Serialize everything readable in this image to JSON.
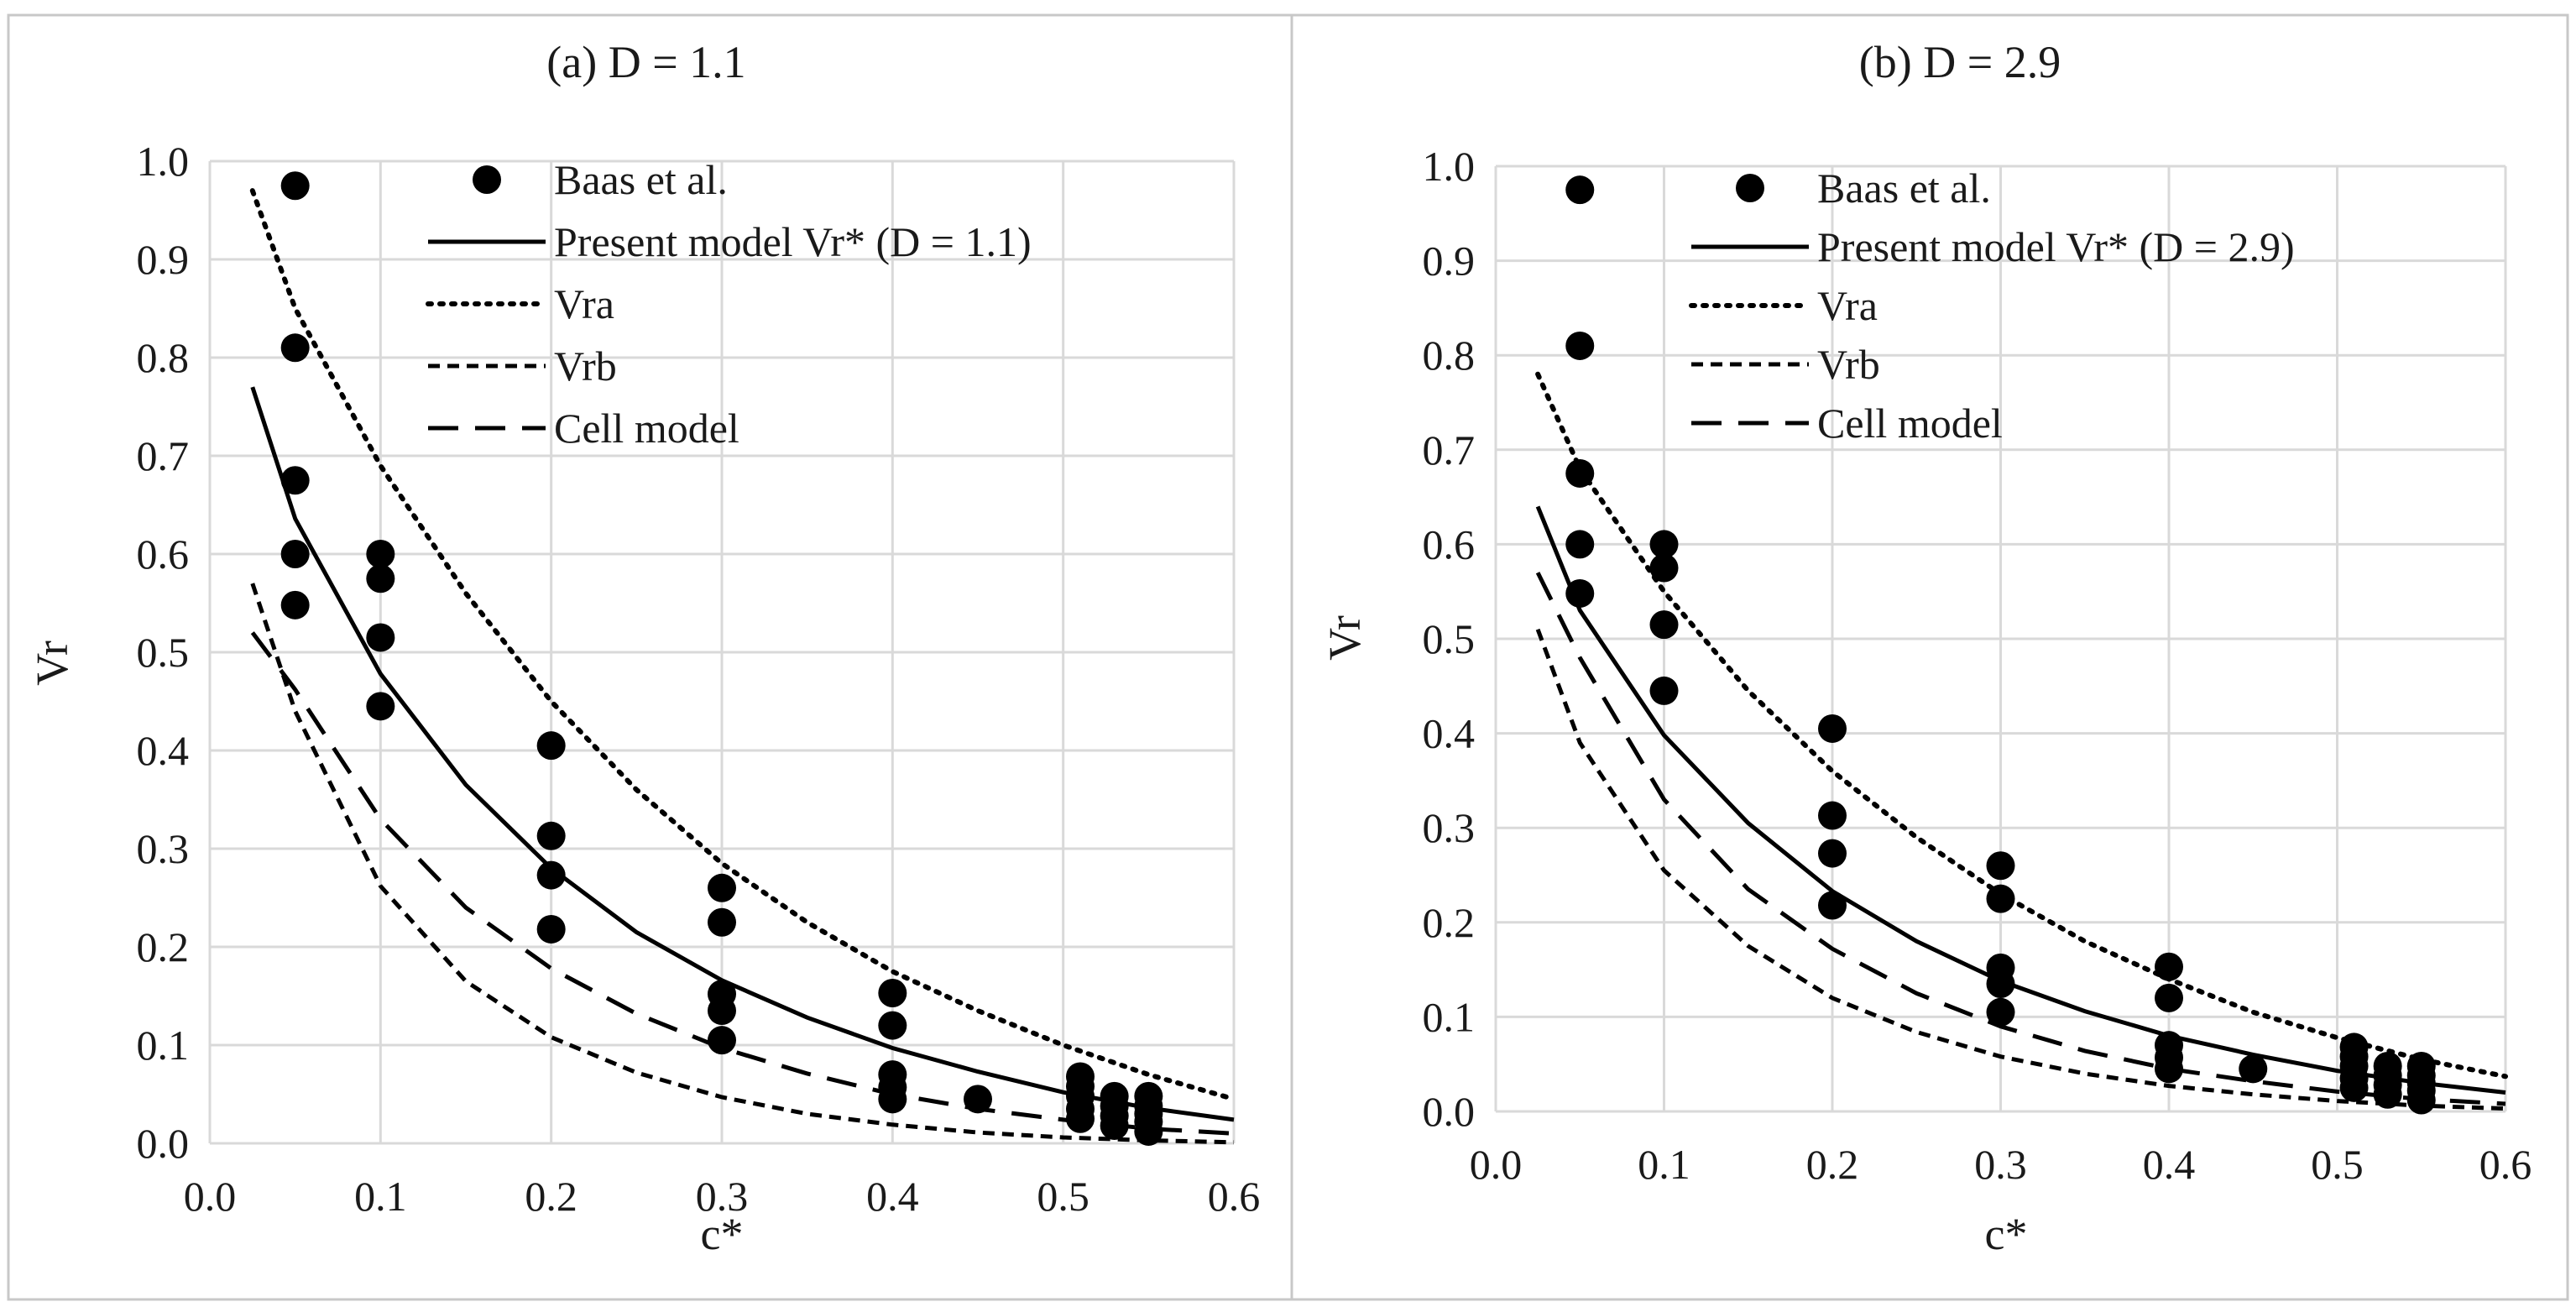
{
  "chart_data": [
    {
      "type": "scatter",
      "title": "(a) D = 1.1",
      "xlabel": "c*",
      "ylabel": "Vr",
      "xlim": [
        0.0,
        0.6
      ],
      "ylim": [
        0.0,
        1.0
      ],
      "xticks": [
        "0.0",
        "0.1",
        "0.2",
        "0.3",
        "0.4",
        "0.5",
        "0.6"
      ],
      "yticks": [
        "0.0",
        "0.1",
        "0.2",
        "0.3",
        "0.4",
        "0.5",
        "0.6",
        "0.7",
        "0.8",
        "0.9",
        "1.0"
      ],
      "grid": true,
      "legend_position": "top-right",
      "legend": [
        "Baas et al.",
        "Present model Vr* (D = 1.1)",
        "Vra",
        "Vrb",
        "Cell model"
      ],
      "series": [
        {
          "name": "Baas et al.",
          "kind": "points",
          "x": [
            0.05,
            0.05,
            0.05,
            0.05,
            0.05,
            0.1,
            0.1,
            0.1,
            0.1,
            0.2,
            0.2,
            0.2,
            0.2,
            0.3,
            0.3,
            0.3,
            0.3,
            0.3,
            0.4,
            0.4,
            0.4,
            0.4,
            0.4,
            0.45,
            0.51,
            0.51,
            0.51,
            0.51,
            0.51,
            0.53,
            0.53,
            0.53,
            0.53,
            0.55,
            0.55,
            0.55,
            0.55,
            0.55
          ],
          "y": [
            0.975,
            0.81,
            0.675,
            0.6,
            0.548,
            0.6,
            0.575,
            0.515,
            0.445,
            0.405,
            0.313,
            0.273,
            0.218,
            0.26,
            0.225,
            0.152,
            0.135,
            0.105,
            0.153,
            0.12,
            0.07,
            0.057,
            0.045,
            0.045,
            0.068,
            0.058,
            0.048,
            0.035,
            0.025,
            0.048,
            0.038,
            0.028,
            0.018,
            0.048,
            0.038,
            0.03,
            0.022,
            0.012
          ]
        },
        {
          "name": "Present model Vr* (D = 1.1)",
          "kind": "line",
          "style": "solid",
          "x": [
            0.025,
            0.05,
            0.1,
            0.15,
            0.2,
            0.25,
            0.3,
            0.35,
            0.4,
            0.45,
            0.5,
            0.55,
            0.6
          ],
          "y": [
            0.77,
            0.636,
            0.478,
            0.365,
            0.28,
            0.215,
            0.166,
            0.128,
            0.097,
            0.073,
            0.052,
            0.036,
            0.024
          ]
        },
        {
          "name": "Vra",
          "kind": "line",
          "style": "dotted",
          "x": [
            0.025,
            0.05,
            0.1,
            0.15,
            0.2,
            0.25,
            0.3,
            0.35,
            0.4,
            0.45,
            0.5,
            0.55,
            0.6
          ],
          "y": [
            0.97,
            0.85,
            0.69,
            0.56,
            0.45,
            0.36,
            0.285,
            0.225,
            0.175,
            0.135,
            0.1,
            0.07,
            0.045
          ]
        },
        {
          "name": "Vrb",
          "kind": "line",
          "style": "short-dash",
          "x": [
            0.025,
            0.05,
            0.1,
            0.15,
            0.2,
            0.25,
            0.3,
            0.35,
            0.4,
            0.45,
            0.5,
            0.55,
            0.6
          ],
          "y": [
            0.57,
            0.44,
            0.262,
            0.165,
            0.108,
            0.072,
            0.047,
            0.03,
            0.019,
            0.011,
            0.006,
            0.003,
            0.001
          ]
        },
        {
          "name": "Cell model",
          "kind": "line",
          "style": "long-dash",
          "x": [
            0.025,
            0.05,
            0.1,
            0.15,
            0.2,
            0.25,
            0.3,
            0.35,
            0.4,
            0.45,
            0.5,
            0.55,
            0.6
          ],
          "y": [
            0.52,
            0.462,
            0.33,
            0.24,
            0.178,
            0.132,
            0.097,
            0.071,
            0.05,
            0.035,
            0.024,
            0.015,
            0.01
          ]
        }
      ]
    },
    {
      "type": "scatter",
      "title": "(b) D = 2.9",
      "xlabel": "c*",
      "ylabel": "Vr",
      "xlim": [
        0.0,
        0.6
      ],
      "ylim": [
        0.0,
        1.0
      ],
      "xticks": [
        "0.0",
        "0.1",
        "0.2",
        "0.3",
        "0.4",
        "0.5",
        "0.6"
      ],
      "yticks": [
        "0.0",
        "0.1",
        "0.2",
        "0.3",
        "0.4",
        "0.5",
        "0.6",
        "0.7",
        "0.8",
        "0.9",
        "1.0"
      ],
      "grid": true,
      "legend_position": "top-right",
      "legend": [
        "Baas et al.",
        "Present model Vr* (D = 2.9)",
        "Vra",
        "Vrb",
        "Cell model"
      ],
      "series": [
        {
          "name": "Baas et al.",
          "kind": "points",
          "x": [
            0.05,
            0.05,
            0.05,
            0.05,
            0.05,
            0.1,
            0.1,
            0.1,
            0.1,
            0.2,
            0.2,
            0.2,
            0.2,
            0.3,
            0.3,
            0.3,
            0.3,
            0.3,
            0.4,
            0.4,
            0.4,
            0.4,
            0.4,
            0.45,
            0.51,
            0.51,
            0.51,
            0.51,
            0.51,
            0.53,
            0.53,
            0.53,
            0.53,
            0.55,
            0.55,
            0.55,
            0.55,
            0.55
          ],
          "y": [
            0.975,
            0.81,
            0.675,
            0.6,
            0.548,
            0.6,
            0.575,
            0.515,
            0.445,
            0.405,
            0.313,
            0.273,
            0.218,
            0.26,
            0.225,
            0.152,
            0.135,
            0.105,
            0.153,
            0.12,
            0.07,
            0.057,
            0.045,
            0.045,
            0.068,
            0.058,
            0.048,
            0.035,
            0.025,
            0.048,
            0.038,
            0.028,
            0.018,
            0.048,
            0.038,
            0.03,
            0.022,
            0.012
          ]
        },
        {
          "name": "Present model Vr* (D = 2.9)",
          "kind": "line",
          "style": "solid",
          "x": [
            0.025,
            0.05,
            0.1,
            0.15,
            0.2,
            0.25,
            0.3,
            0.35,
            0.4,
            0.45,
            0.5,
            0.55,
            0.6
          ],
          "y": [
            0.64,
            0.53,
            0.398,
            0.305,
            0.233,
            0.18,
            0.138,
            0.106,
            0.08,
            0.06,
            0.043,
            0.03,
            0.02
          ]
        },
        {
          "name": "Vra",
          "kind": "line",
          "style": "dotted",
          "x": [
            0.025,
            0.05,
            0.1,
            0.15,
            0.2,
            0.25,
            0.3,
            0.35,
            0.4,
            0.45,
            0.5,
            0.55,
            0.6
          ],
          "y": [
            0.78,
            0.68,
            0.55,
            0.445,
            0.36,
            0.29,
            0.23,
            0.18,
            0.14,
            0.105,
            0.078,
            0.055,
            0.037
          ]
        },
        {
          "name": "Vrb",
          "kind": "line",
          "style": "short-dash",
          "x": [
            0.025,
            0.05,
            0.1,
            0.15,
            0.2,
            0.25,
            0.3,
            0.35,
            0.4,
            0.45,
            0.5,
            0.55,
            0.6
          ],
          "y": [
            0.51,
            0.39,
            0.255,
            0.175,
            0.12,
            0.084,
            0.058,
            0.04,
            0.027,
            0.018,
            0.011,
            0.006,
            0.003
          ]
        },
        {
          "name": "Cell model",
          "kind": "line",
          "style": "long-dash",
          "x": [
            0.025,
            0.05,
            0.1,
            0.15,
            0.2,
            0.25,
            0.3,
            0.35,
            0.4,
            0.45,
            0.5,
            0.55,
            0.6
          ],
          "y": [
            0.57,
            0.48,
            0.33,
            0.235,
            0.172,
            0.125,
            0.09,
            0.064,
            0.045,
            0.032,
            0.021,
            0.013,
            0.008
          ]
        }
      ]
    }
  ]
}
